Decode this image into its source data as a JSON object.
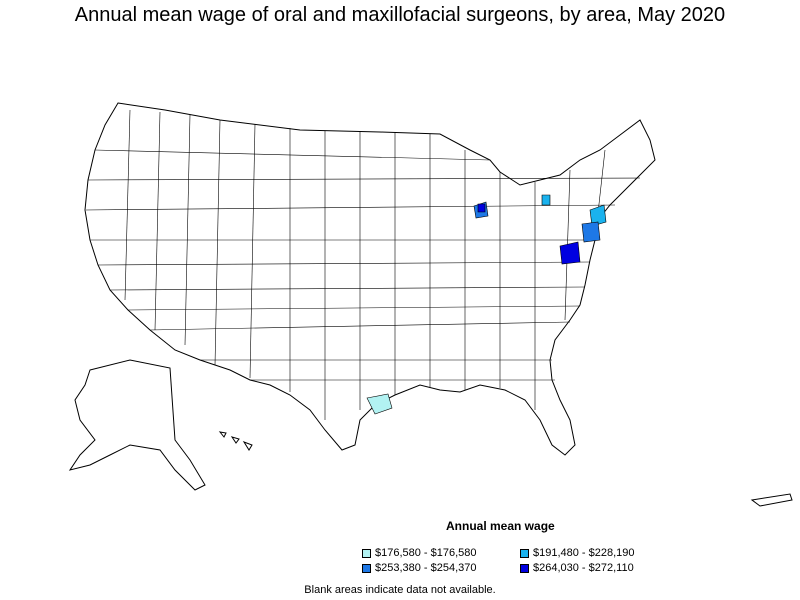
{
  "title": "Annual mean wage of oral and maxillofacial surgeons, by area, May 2020",
  "legend": {
    "title": "Annual mean wage",
    "items": [
      {
        "label": "$176,580 - $176,580",
        "color": "#b2f2f2"
      },
      {
        "label": "$191,480 - $228,190",
        "color": "#1ab2ee"
      },
      {
        "label": "$253,380 - $254,370",
        "color": "#1e78e6"
      },
      {
        "label": "$264,030 - $272,110",
        "color": "#0000e0"
      }
    ]
  },
  "note": "Blank areas indicate data not available.",
  "colors": {
    "outline": "#000000",
    "background": "#ffffff"
  }
}
